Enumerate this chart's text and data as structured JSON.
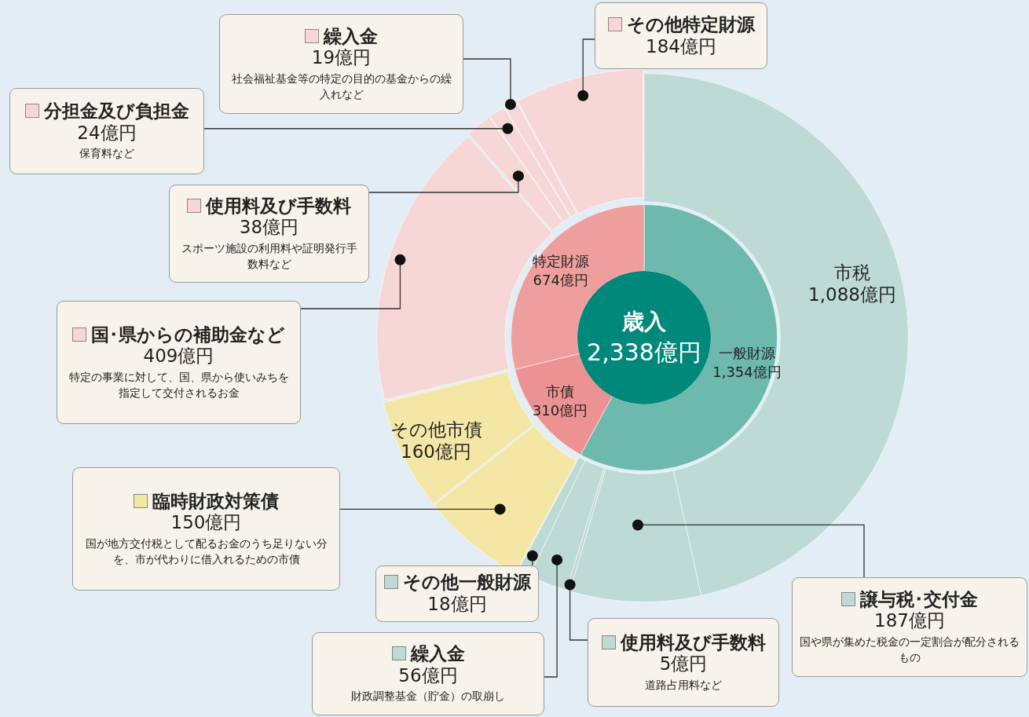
{
  "chart_data": [
    {
      "type": "donut",
      "categories": [
        "市税",
        "譲与税･交付金",
        "使用料及び手数料",
        "繰入金",
        "その他一般財源",
        "臨時財政対策債",
        "その他市債",
        "国･県からの補助金など",
        "使用料及び手数料",
        "分担金及び負担金",
        "繰入金",
        "その他特定財源"
      ],
      "values": [
        1088,
        187,
        5,
        56,
        18,
        150,
        160,
        409,
        38,
        24,
        19,
        184
      ],
      "value_labels": [
        "1,088億円",
        "187億円",
        "5億円",
        "56億円",
        "18億円",
        "150億円",
        "160億円",
        "409億円",
        "38億円",
        "24億円",
        "19億円",
        "184億円"
      ],
      "legend": "left",
      "colors": [
        "#bddad4",
        "#bddad4",
        "#bddad4",
        "#bddad4",
        "#bddad4",
        "#f4e7a6",
        "#f4e7a6",
        "#f7d7d5",
        "#f7d7d5",
        "#f7d7d5",
        "#f7d7d5",
        "#f7d7d5"
      ],
      "annotations": [
        "国や県が集めた税金の一定割合が配分されるもの",
        "道路占用料など",
        "財政調整基金（貯金）の取崩し",
        "国が地方交付税として配るお金のうち足りない分を、市が代わりに借入れるための市債",
        "特定の事業に対して、国、県から使いみちを指定して交付されるお金",
        "スポーツ施設の利用料や証明発行手数料など",
        "保育料など",
        "社会福祉基金等の特定の目的の基金からの繰入れなど"
      ]
    },
    {
      "type": "donut",
      "title": "歳入",
      "subtitle": "2,338億円",
      "categories": [
        "一般財源",
        "市債",
        "特定財源"
      ],
      "values": [
        1354,
        310,
        674
      ],
      "value_labels": [
        "1,354億円",
        "310億円",
        "674億円"
      ],
      "colors": [
        "#6db9ad",
        "#ec9292",
        "#ef9e9e"
      ]
    }
  ]
}
